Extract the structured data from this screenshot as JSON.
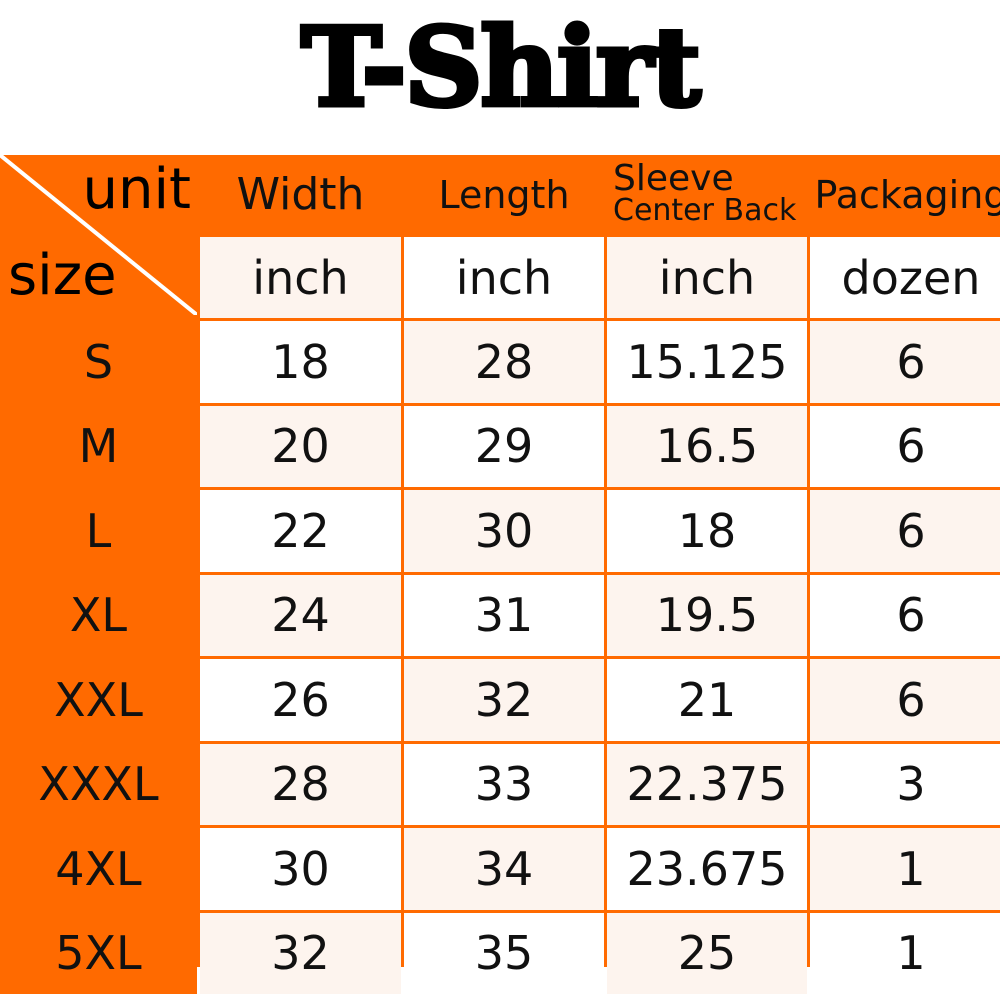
{
  "title": "T-Shirt",
  "colors": {
    "accent": "#ff6a00",
    "row_alt": "#fdf4ee"
  },
  "corner": {
    "unit_label": "unit",
    "size_label": "size"
  },
  "columns": [
    {
      "label": "Width",
      "unit": "inch"
    },
    {
      "label": "Length",
      "unit": "inch"
    },
    {
      "label_line1": "Sleeve",
      "label_line2": "Center Back",
      "unit": "inch"
    },
    {
      "label": "Packaging",
      "unit": "dozen"
    }
  ],
  "rows": [
    {
      "size": "S",
      "values": [
        "18",
        "28",
        "15.125",
        "6"
      ]
    },
    {
      "size": "M",
      "values": [
        "20",
        "29",
        "16.5",
        "6"
      ]
    },
    {
      "size": "L",
      "values": [
        "22",
        "30",
        "18",
        "6"
      ]
    },
    {
      "size": "XL",
      "values": [
        "24",
        "31",
        "19.5",
        "6"
      ]
    },
    {
      "size": "XXL",
      "values": [
        "26",
        "32",
        "21",
        "6"
      ]
    },
    {
      "size": "XXXL",
      "values": [
        "28",
        "33",
        "22.375",
        "3"
      ]
    },
    {
      "size": "4XL",
      "values": [
        "30",
        "34",
        "23.675",
        "1"
      ]
    },
    {
      "size": "5XL",
      "values": [
        "32",
        "35",
        "25",
        "1"
      ]
    }
  ]
}
